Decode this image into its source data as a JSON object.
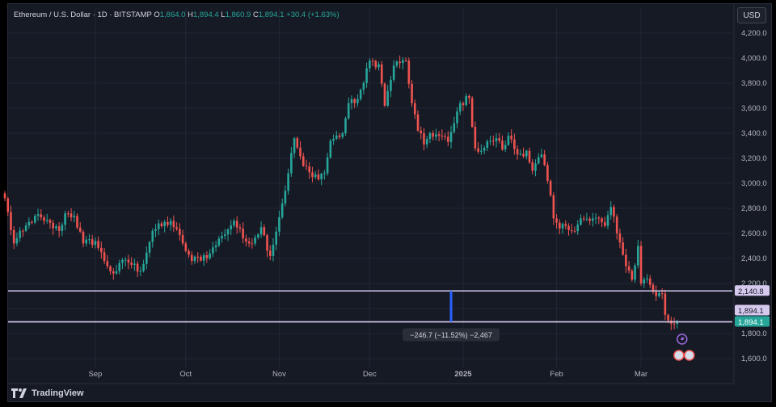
{
  "header": {
    "symbol": "Ethereum / U.S. Dollar · 1D · BITSTAMP",
    "o_label": "O",
    "o_value": "1,864.0",
    "h_label": "H",
    "h_value": "1,894.4",
    "l_label": "L",
    "l_value": "1,860.9",
    "c_label": "C",
    "c_value": "1,894.1",
    "change": "+30.4 (+1.63%)"
  },
  "currency_button": "USD",
  "brand": "TradingView",
  "colors": {
    "background": "#161a25",
    "grid": "#232734",
    "up": "#26a69a",
    "down": "#ef5350",
    "text": "#b2b5be",
    "hline": "#d6c9ee",
    "measure": "#2962ff"
  },
  "chart_data": {
    "type": "candlestick",
    "title": "Ethereum / U.S. Dollar · 1D · BITSTAMP",
    "x_ticks": [
      "Sep",
      "Oct",
      "Nov",
      "Dec",
      "2025",
      "Feb",
      "Mar"
    ],
    "x_tick_days": [
      30,
      60,
      91,
      121,
      152,
      183,
      211
    ],
    "y_ticks": [
      1600,
      1800,
      2000,
      2200,
      2400,
      2600,
      2800,
      3000,
      3200,
      3400,
      3600,
      3800,
      4000,
      4200
    ],
    "y_tick_labels": [
      "1,600.0",
      "1,800.0",
      "2,000.0",
      "2,200.0",
      "2,400.0",
      "2,600.0",
      "2,800.0",
      "3,000.0",
      "3,200.0",
      "3,400.0",
      "3,600.0",
      "3,800.0",
      "4,000.0",
      "4,200.0"
    ],
    "ylim": [
      1530,
      4270
    ],
    "x_range_days": [
      0,
      235
    ],
    "anchors": [
      [
        0,
        2880
      ],
      [
        3,
        2520
      ],
      [
        6,
        2620
      ],
      [
        10,
        2740
      ],
      [
        13,
        2700
      ],
      [
        18,
        2620
      ],
      [
        20,
        2760
      ],
      [
        23,
        2740
      ],
      [
        26,
        2520
      ],
      [
        30,
        2540
      ],
      [
        33,
        2380
      ],
      [
        36,
        2280
      ],
      [
        40,
        2390
      ],
      [
        45,
        2300
      ],
      [
        49,
        2620
      ],
      [
        55,
        2700
      ],
      [
        59,
        2520
      ],
      [
        62,
        2380
      ],
      [
        68,
        2440
      ],
      [
        72,
        2580
      ],
      [
        76,
        2700
      ],
      [
        79,
        2560
      ],
      [
        81,
        2520
      ],
      [
        85,
        2650
      ],
      [
        88,
        2420
      ],
      [
        92,
        2840
      ],
      [
        94,
        3080
      ],
      [
        96,
        3360
      ],
      [
        99,
        3140
      ],
      [
        102,
        3050
      ],
      [
        106,
        3080
      ],
      [
        108,
        3340
      ],
      [
        112,
        3400
      ],
      [
        114,
        3640
      ],
      [
        116,
        3640
      ],
      [
        119,
        3800
      ],
      [
        121,
        3980
      ],
      [
        124,
        3950
      ],
      [
        126,
        3620
      ],
      [
        129,
        3940
      ],
      [
        131,
        3960
      ],
      [
        133,
        3980
      ],
      [
        135,
        3640
      ],
      [
        137,
        3420
      ],
      [
        139,
        3310
      ],
      [
        141,
        3400
      ],
      [
        144,
        3380
      ],
      [
        147,
        3330
      ],
      [
        149,
        3480
      ],
      [
        151,
        3640
      ],
      [
        154,
        3680
      ],
      [
        156,
        3280
      ],
      [
        158,
        3260
      ],
      [
        161,
        3340
      ],
      [
        163,
        3360
      ],
      [
        165,
        3270
      ],
      [
        167,
        3380
      ],
      [
        170,
        3230
      ],
      [
        173,
        3260
      ],
      [
        175,
        3100
      ],
      [
        178,
        3230
      ],
      [
        180,
        3020
      ],
      [
        182,
        2720
      ],
      [
        184,
        2640
      ],
      [
        186,
        2660
      ],
      [
        188,
        2620
      ],
      [
        191,
        2720
      ],
      [
        194,
        2700
      ],
      [
        197,
        2720
      ],
      [
        199,
        2660
      ],
      [
        201,
        2810
      ],
      [
        203,
        2600
      ],
      [
        205,
        2430
      ],
      [
        208,
        2230
      ],
      [
        210,
        2500
      ],
      [
        211,
        2200
      ],
      [
        213,
        2240
      ],
      [
        216,
        2100
      ],
      [
        218,
        2120
      ],
      [
        219,
        1950
      ],
      [
        221,
        1880
      ],
      [
        223,
        1894.1
      ]
    ],
    "last_price": 1894.1,
    "horizontal_lines": [
      {
        "label": "2,140.8",
        "value": 2140.8
      },
      {
        "label": "1,894.1",
        "value": 1894.1
      }
    ],
    "current_price_label": "1,894.1",
    "measure": {
      "day": 148,
      "from": 2140.8,
      "to": 1894.1,
      "label": "−246.7 (−11.52%) −2,467"
    },
    "grid": true
  }
}
